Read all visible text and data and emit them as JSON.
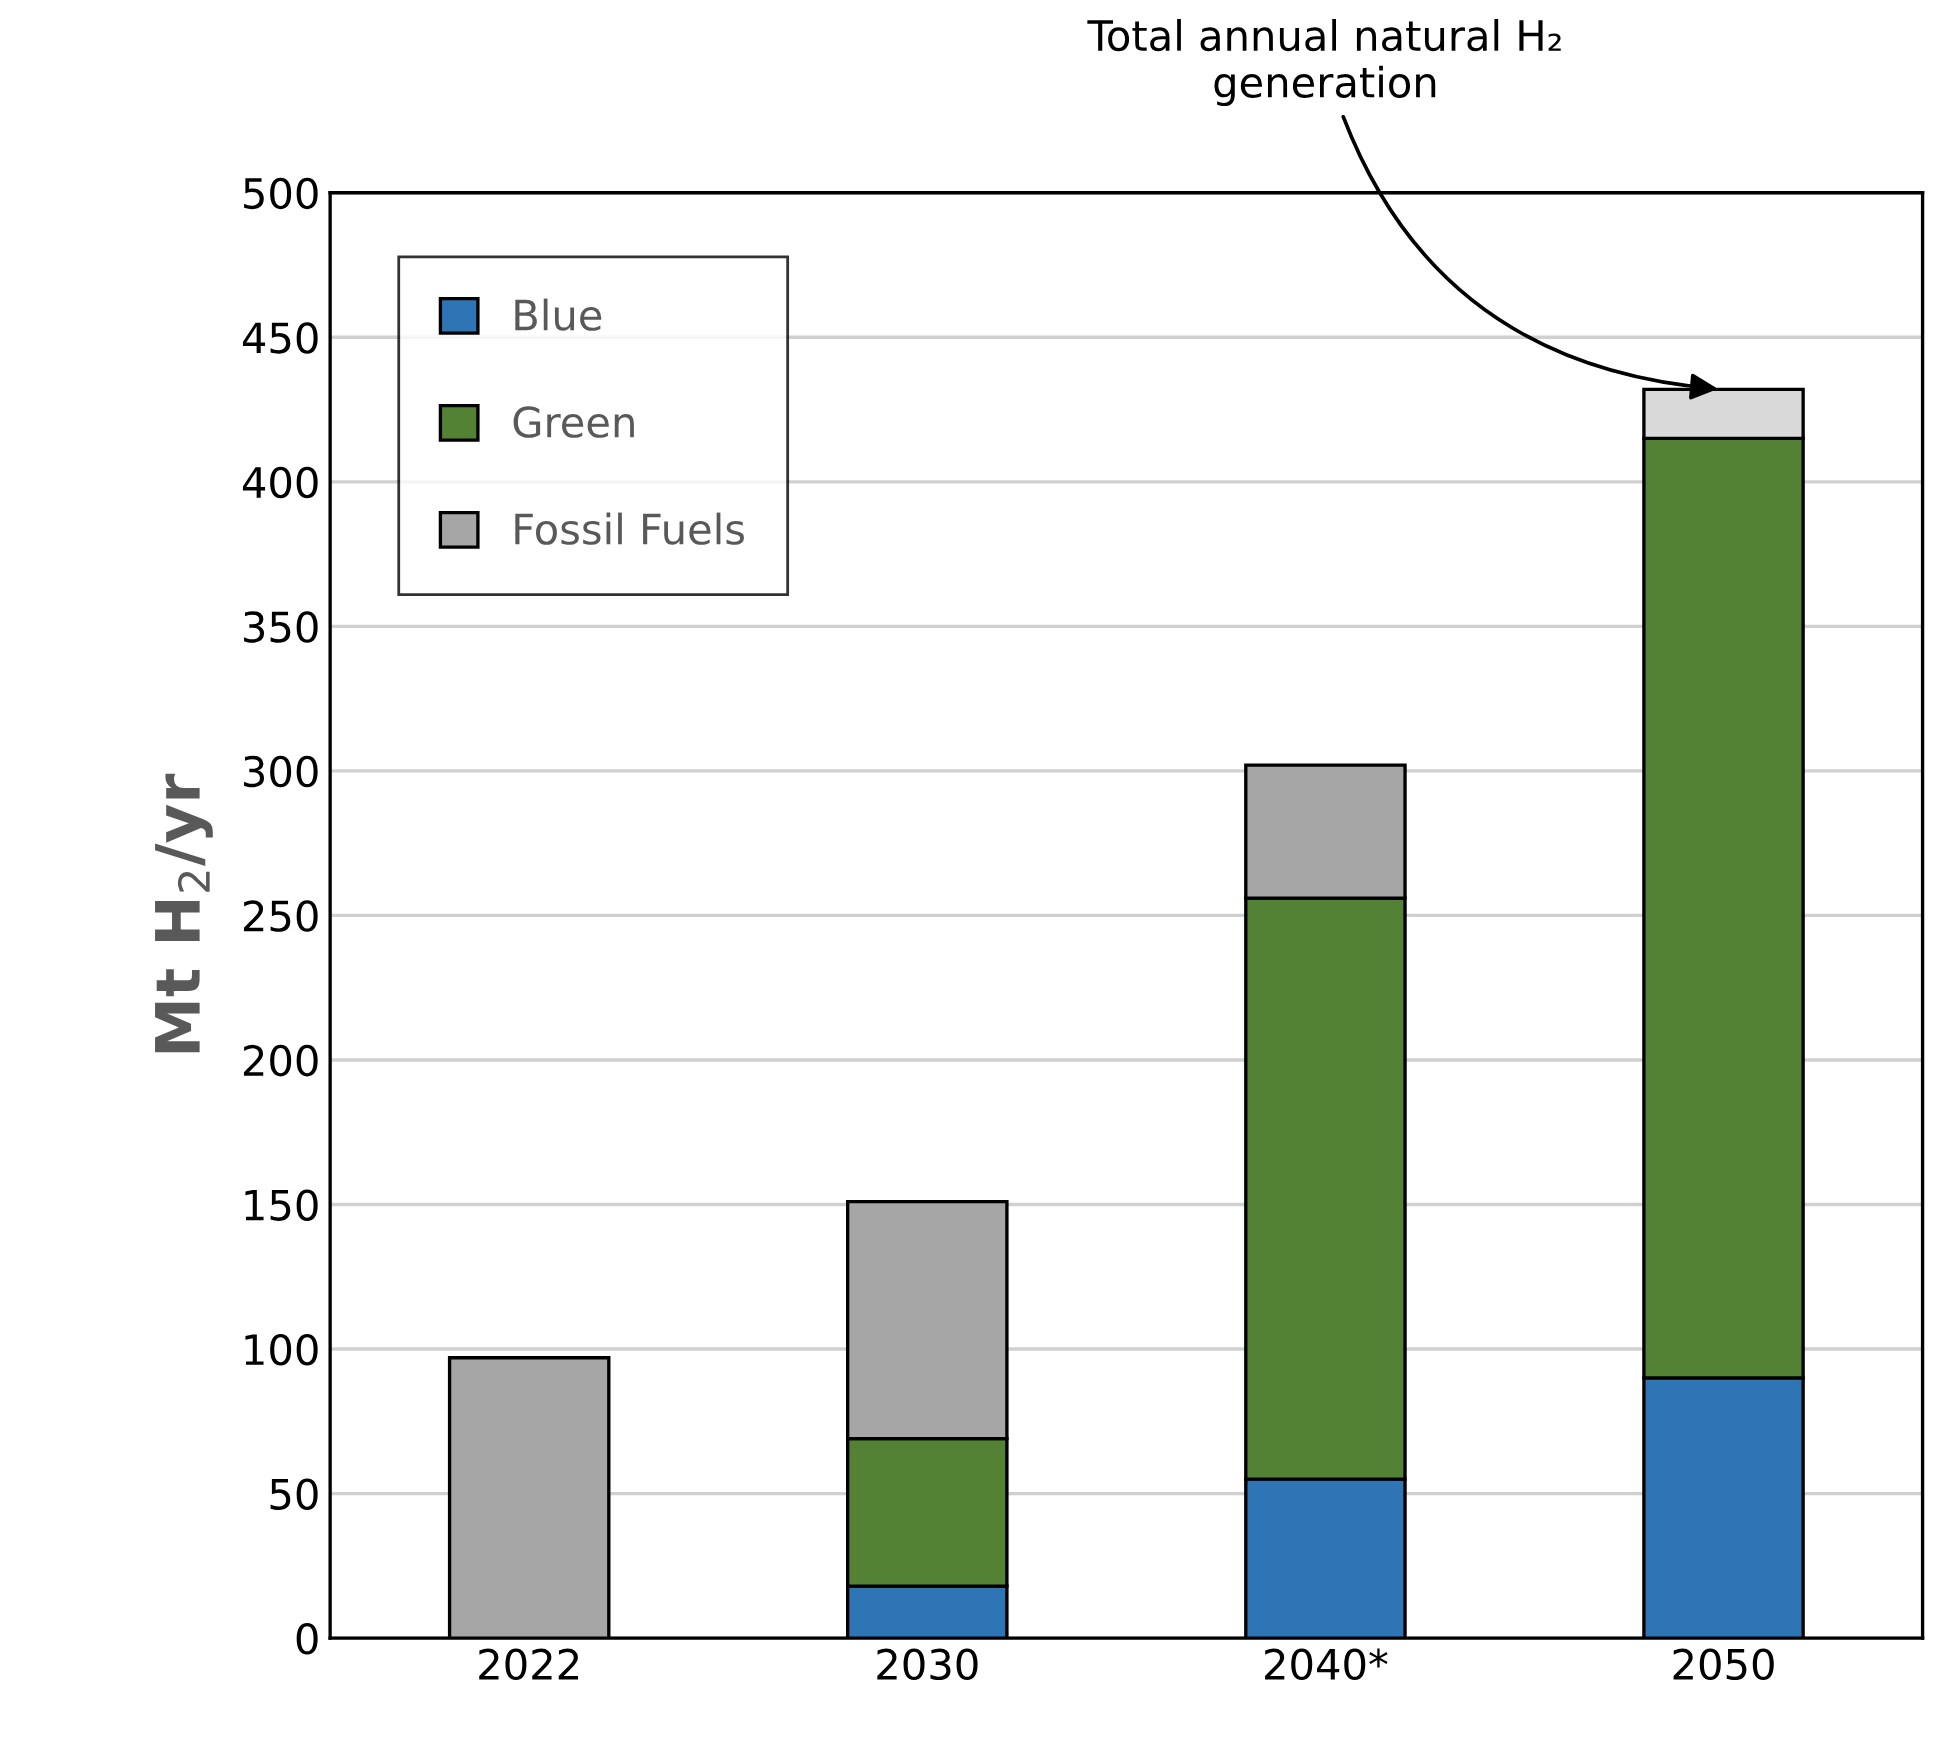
{
  "chart_data": {
    "type": "bar",
    "stacked": true,
    "ylabel": "Mt H$_{2}$/yr",
    "categories": [
      "2022",
      "2030",
      "2040*",
      "2050"
    ],
    "series": [
      {
        "name": "Blue",
        "color": "#2e75b6",
        "values": [
          null,
          18,
          55,
          90
        ]
      },
      {
        "name": "Green",
        "color": "#548235",
        "values": [
          null,
          51,
          201,
          325
        ]
      },
      {
        "name": "Fossil Fuels",
        "color": "#a6a6a6",
        "values": [
          97,
          82,
          46,
          null
        ]
      },
      {
        "color": "#d9d9d9",
        "values": [
          null,
          null,
          null,
          17
        ]
      }
    ],
    "ylim": [
      0,
      500
    ],
    "yticks": [
      0,
      50,
      100,
      150,
      200,
      250,
      300,
      350,
      400,
      450,
      500
    ],
    "grid": "y",
    "legend": "top left",
    "annotations": [
      {
        "text": "Total annual natural H₂\ngeneration",
        "x": "2050",
        "y": 432
      }
    ]
  }
}
